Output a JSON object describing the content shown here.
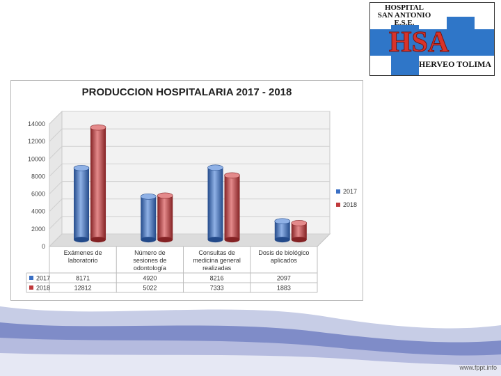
{
  "logo": {
    "lines": [
      "HOSPITAL",
      "SAN ANTONIO",
      "E.S.E."
    ],
    "initials": "HSA",
    "place": "HERVEO TOLIMA"
  },
  "footer": {
    "link": "www.fppt.info"
  },
  "colors": {
    "series_2017": "#3a6fc4",
    "series_2018": "#c0393b",
    "logo_cross": "#2f76c8",
    "logo_initials": "#d8332a"
  },
  "chart_data": {
    "type": "bar",
    "title": "PRODUCCION HOSPITALARIA 2017 - 2018",
    "categories": [
      [
        "Exámenes de",
        "laboratorio"
      ],
      [
        "Número de",
        "sesiones de",
        "odontología"
      ],
      [
        "Consultas de",
        "medicina general",
        "realizadas"
      ],
      [
        "Dosis de biológico",
        "aplicados"
      ]
    ],
    "series": [
      {
        "name": "2017",
        "values": [
          8171,
          4920,
          8216,
          2097
        ]
      },
      {
        "name": "2018",
        "values": [
          12812,
          5022,
          7333,
          1883
        ]
      }
    ],
    "ylim": [
      0,
      14000
    ],
    "yticks": [
      0,
      2000,
      4000,
      6000,
      8000,
      10000,
      12000,
      14000
    ],
    "legend": "right",
    "grid": true,
    "data_table": true
  }
}
